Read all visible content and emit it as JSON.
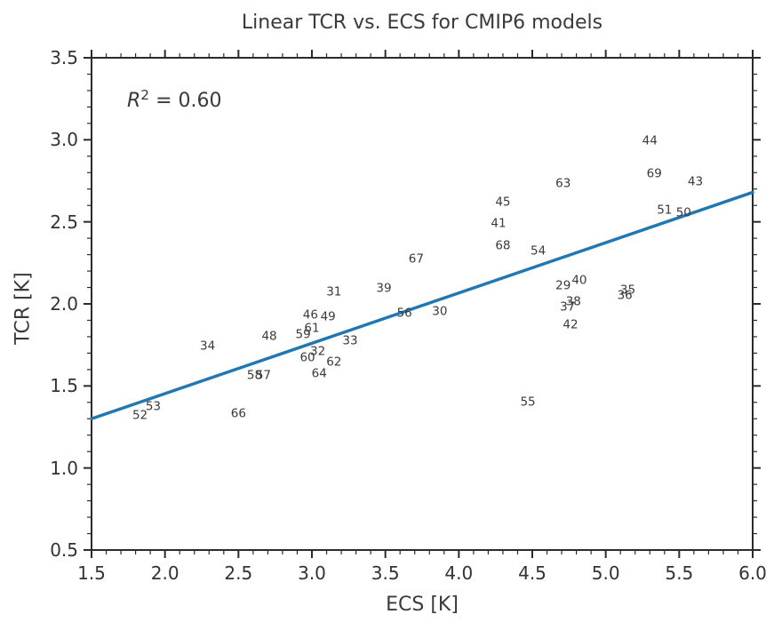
{
  "annotation": {
    "r": "R",
    "sup": "2",
    "rest": " = 0.60"
  },
  "chart_data": {
    "type": "scatter",
    "title": "Linear TCR vs. ECS for CMIP6 models",
    "xlabel": "ECS [K]",
    "ylabel": "TCR [K]",
    "xlim": [
      1.5,
      6.0
    ],
    "ylim": [
      0.5,
      3.5
    ],
    "x_major_ticks": [
      1.5,
      2.0,
      2.5,
      3.0,
      3.5,
      4.0,
      4.5,
      5.0,
      5.5,
      6.0
    ],
    "x_tick_labels": [
      "1.5",
      "2.0",
      "2.5",
      "3.0",
      "3.5",
      "4.0",
      "4.5",
      "5.0",
      "5.5",
      "6.0"
    ],
    "y_major_ticks": [
      0.5,
      1.0,
      1.5,
      2.0,
      2.5,
      3.0,
      3.5
    ],
    "y_tick_labels": [
      "0.5",
      "1.0",
      "1.5",
      "2.0",
      "2.5",
      "3.0",
      "3.5"
    ],
    "minor_tick_step": 0.1,
    "grid": false,
    "r_squared": 0.6,
    "annotation_text": "R² = 0.60",
    "annotation_pos": {
      "ecs": 1.74,
      "tcr": 3.25
    },
    "marker_style": "numeric-text-labels",
    "points": [
      {
        "label": "29",
        "ecs": 4.71,
        "tcr": 2.11
      },
      {
        "label": "30",
        "ecs": 3.87,
        "tcr": 1.95
      },
      {
        "label": "31",
        "ecs": 3.15,
        "tcr": 2.07
      },
      {
        "label": "32",
        "ecs": 3.04,
        "tcr": 1.71
      },
      {
        "label": "33",
        "ecs": 3.26,
        "tcr": 1.77
      },
      {
        "label": "34",
        "ecs": 2.29,
        "tcr": 1.74
      },
      {
        "label": "35",
        "ecs": 5.15,
        "tcr": 2.08
      },
      {
        "label": "36",
        "ecs": 5.13,
        "tcr": 2.05
      },
      {
        "label": "37",
        "ecs": 4.74,
        "tcr": 1.98
      },
      {
        "label": "38",
        "ecs": 4.78,
        "tcr": 2.01
      },
      {
        "label": "39",
        "ecs": 3.49,
        "tcr": 2.09
      },
      {
        "label": "40",
        "ecs": 4.82,
        "tcr": 2.14
      },
      {
        "label": "41",
        "ecs": 4.27,
        "tcr": 2.49
      },
      {
        "label": "42",
        "ecs": 4.76,
        "tcr": 1.87
      },
      {
        "label": "43",
        "ecs": 5.61,
        "tcr": 2.74
      },
      {
        "label": "44",
        "ecs": 5.3,
        "tcr": 2.99
      },
      {
        "label": "45",
        "ecs": 4.3,
        "tcr": 2.62
      },
      {
        "label": "46",
        "ecs": 2.99,
        "tcr": 1.93
      },
      {
        "label": "48",
        "ecs": 2.71,
        "tcr": 1.8
      },
      {
        "label": "49",
        "ecs": 3.11,
        "tcr": 1.92
      },
      {
        "label": "50",
        "ecs": 5.53,
        "tcr": 2.55
      },
      {
        "label": "51",
        "ecs": 5.4,
        "tcr": 2.57
      },
      {
        "label": "52",
        "ecs": 1.83,
        "tcr": 1.32
      },
      {
        "label": "53",
        "ecs": 1.92,
        "tcr": 1.37
      },
      {
        "label": "54",
        "ecs": 4.54,
        "tcr": 2.32
      },
      {
        "label": "55",
        "ecs": 4.47,
        "tcr": 1.4
      },
      {
        "label": "56",
        "ecs": 3.63,
        "tcr": 1.94
      },
      {
        "label": "57",
        "ecs": 2.67,
        "tcr": 1.56
      },
      {
        "label": "58",
        "ecs": 2.61,
        "tcr": 1.56
      },
      {
        "label": "59",
        "ecs": 2.94,
        "tcr": 1.81
      },
      {
        "label": "60",
        "ecs": 2.97,
        "tcr": 1.67
      },
      {
        "label": "61",
        "ecs": 3.0,
        "tcr": 1.85
      },
      {
        "label": "62",
        "ecs": 3.15,
        "tcr": 1.64
      },
      {
        "label": "63",
        "ecs": 4.71,
        "tcr": 2.73
      },
      {
        "label": "64",
        "ecs": 3.05,
        "tcr": 1.57
      },
      {
        "label": "66",
        "ecs": 2.5,
        "tcr": 1.33
      },
      {
        "label": "67",
        "ecs": 3.71,
        "tcr": 2.27
      },
      {
        "label": "68",
        "ecs": 4.3,
        "tcr": 2.35
      },
      {
        "label": "69",
        "ecs": 5.33,
        "tcr": 2.79
      }
    ],
    "fit_line": {
      "x": [
        1.5,
        6.0
      ],
      "y": [
        1.3,
        2.68
      ],
      "color": "#1f77b4"
    },
    "colors": {
      "line": "#1f77b4",
      "spine": "#2b2b2b",
      "text": "#333333",
      "point_label": "#3a3a3a",
      "background": "#ffffff"
    }
  }
}
